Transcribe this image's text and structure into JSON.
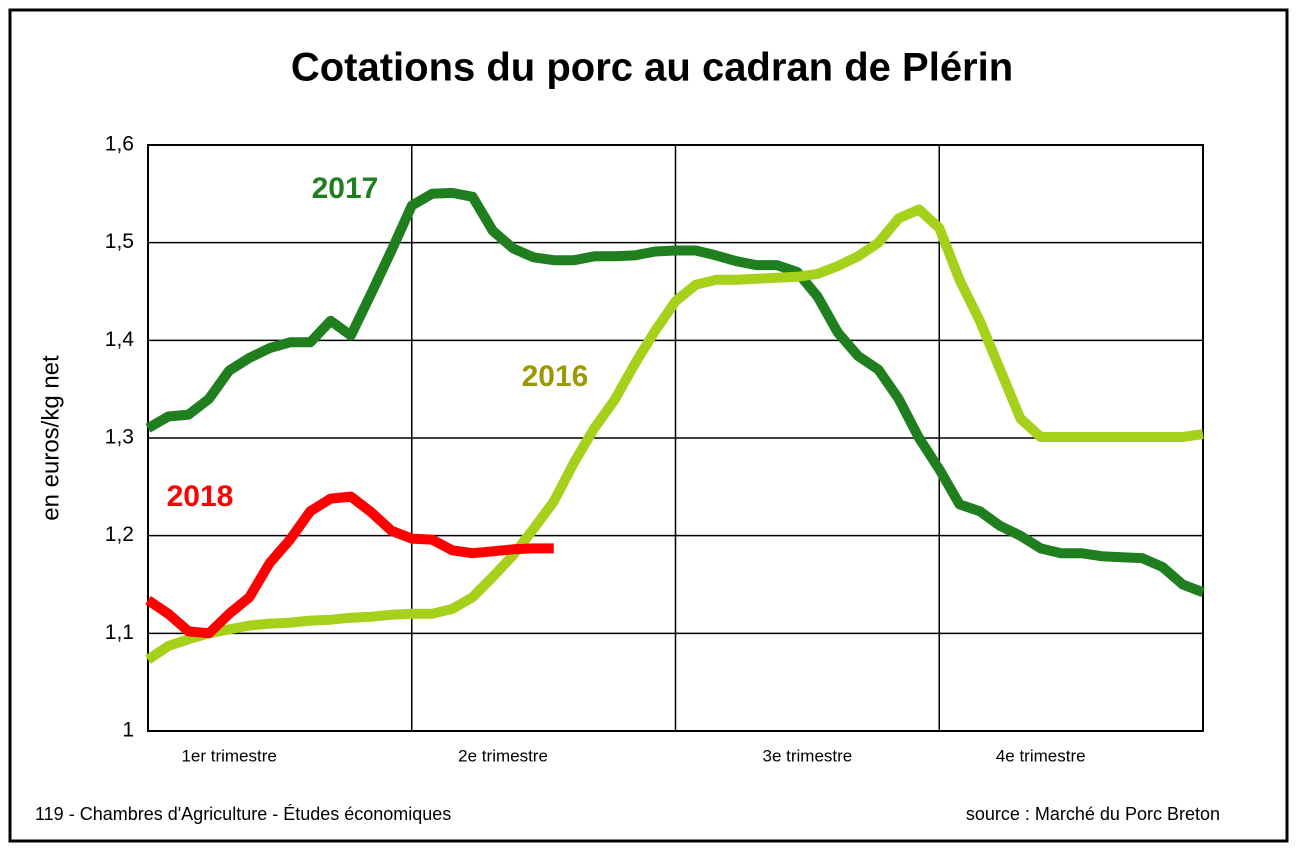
{
  "chart_data": {
    "type": "line",
    "title": "Cotations du porc au cadran de Plérin",
    "y_label": "en euros/kg net",
    "footer_left": "119 - Chambres d'Agriculture - Études économiques",
    "footer_right": "source :  Marché du Porc Breton",
    "x": [
      0,
      1,
      2,
      3,
      4,
      5,
      6,
      7,
      8,
      9,
      10,
      11,
      12,
      13,
      14,
      15,
      16,
      17,
      18,
      19,
      20,
      21,
      22,
      23,
      24,
      25,
      26,
      27,
      28,
      29,
      30,
      31,
      32,
      33,
      34,
      35,
      36,
      37,
      38,
      39,
      40,
      41,
      42,
      43,
      44,
      45,
      46,
      47,
      48,
      49,
      50,
      51,
      52
    ],
    "xlim": [
      0,
      52
    ],
    "xticks": [
      {
        "value": 4,
        "label": "1er trimestre"
      },
      {
        "value": 17.5,
        "label": "2e trimestre"
      },
      {
        "value": 32.5,
        "label": "3e trimestre"
      },
      {
        "value": 44,
        "label": "4e trimestre"
      }
    ],
    "x_grid": [
      13,
      26,
      39
    ],
    "ylim": [
      1,
      1.6
    ],
    "yticks": [
      1,
      {
        "value": 1.1,
        "label": "1,1"
      },
      {
        "value": 1.2,
        "label": "1,2"
      },
      {
        "value": 1.3,
        "label": "1,3"
      },
      {
        "value": 1.4,
        "label": "1,4"
      },
      {
        "value": 1.5,
        "label": "1,5"
      },
      {
        "value": 1.6,
        "label": "1,6"
      }
    ],
    "grid": true,
    "series": [
      {
        "name": "2017",
        "color": "#1f7f1f",
        "label_color": "#1f7f1f",
        "values": [
          1.31,
          1.322,
          1.324,
          1.34,
          1.369,
          1.382,
          1.392,
          1.398,
          1.398,
          1.42,
          1.405,
          1.448,
          1.492,
          1.538,
          1.55,
          1.551,
          1.547,
          1.512,
          1.494,
          1.485,
          1.482,
          1.482,
          1.486,
          1.486,
          1.487,
          1.491,
          1.492,
          1.492,
          1.487,
          1.481,
          1.477,
          1.477,
          1.47,
          1.445,
          1.408,
          1.384,
          1.37,
          1.34,
          1.3,
          1.268,
          1.232,
          1.225,
          1.21,
          1.2,
          1.187,
          1.182,
          1.182,
          1.179,
          1.178,
          1.177,
          1.168,
          1.15,
          1.142
        ]
      },
      {
        "name": "2016",
        "color": "#a6d11a",
        "label_color": "#9a9a00",
        "values": [
          1.073,
          1.087,
          1.094,
          1.1,
          1.104,
          1.108,
          1.11,
          1.111,
          1.113,
          1.114,
          1.116,
          1.117,
          1.119,
          1.12,
          1.12,
          1.125,
          1.137,
          1.158,
          1.18,
          1.207,
          1.235,
          1.275,
          1.31,
          1.339,
          1.376,
          1.41,
          1.44,
          1.457,
          1.462,
          1.462,
          1.463,
          1.464,
          1.465,
          1.468,
          1.476,
          1.486,
          1.5,
          1.525,
          1.534,
          1.515,
          1.462,
          1.42,
          1.37,
          1.32,
          1.301,
          1.301,
          1.301,
          1.301,
          1.301,
          1.301,
          1.301,
          1.301,
          1.304
        ]
      },
      {
        "name": "2018",
        "color": "#ff0000",
        "label_color": "#ff0000",
        "values": [
          1.134,
          1.12,
          1.102,
          1.1,
          1.12,
          1.137,
          1.172,
          1.196,
          1.225,
          1.238,
          1.24,
          1.224,
          1.205,
          1.197,
          1.196,
          1.185,
          1.182,
          1.184,
          1.186,
          1.187,
          1.187,
          null,
          null,
          null,
          null,
          null,
          null,
          null,
          null,
          null,
          null,
          null,
          null,
          null,
          null,
          null,
          null,
          null,
          null,
          null,
          null,
          null,
          null,
          null,
          null,
          null,
          null,
          null,
          null,
          null,
          null,
          null,
          null
        ]
      }
    ]
  }
}
